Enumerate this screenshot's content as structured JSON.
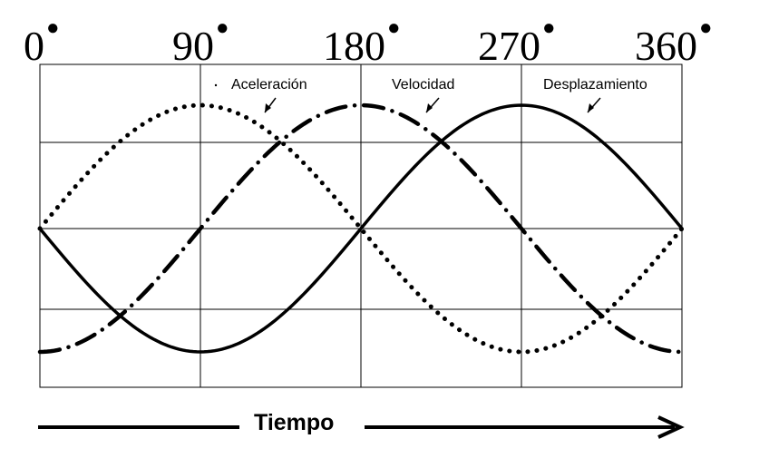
{
  "chart_data": {
    "type": "line",
    "x_unit": "degrees",
    "xlim": [
      0,
      360
    ],
    "ylim": [
      -1.6,
      1.6
    ],
    "grid": true,
    "top_ticks": [
      {
        "value": 0,
        "label": "0"
      },
      {
        "value": 90,
        "label": "90"
      },
      {
        "value": 180,
        "label": "180"
      },
      {
        "value": 270,
        "label": "270"
      },
      {
        "value": 360,
        "label": "360"
      }
    ],
    "degree_mark": "●",
    "x_axis_label": "Tiempo",
    "series": [
      {
        "name": "Aceleración",
        "style": "dotted",
        "function": "sin",
        "amplitude": 1.5,
        "phase_deg": 0
      },
      {
        "name": "Velocidad",
        "style": "dash-dot",
        "function": "-cos",
        "amplitude": 1.5,
        "phase_deg": 0
      },
      {
        "name": "Desplazamiento",
        "style": "solid",
        "function": "-sin",
        "amplitude": 1.5,
        "phase_deg": 0
      }
    ],
    "labels": {
      "acceleration": "Aceleración",
      "velocity": "Velocidad",
      "displacement": "Desplazamiento"
    }
  }
}
